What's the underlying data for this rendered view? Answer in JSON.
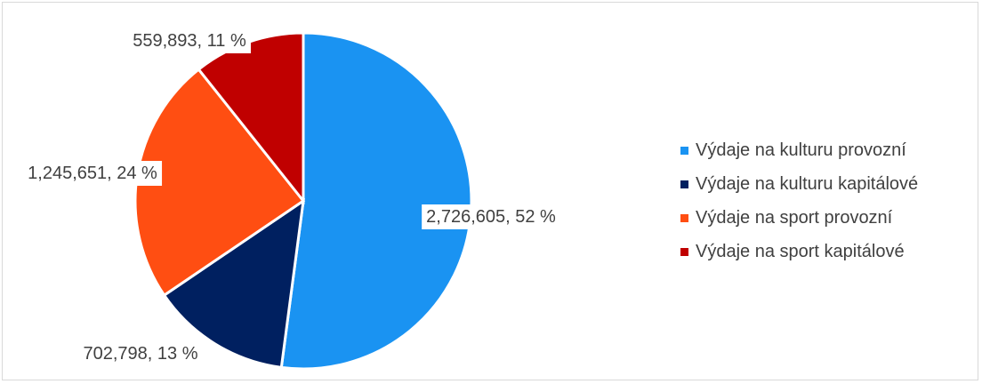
{
  "chart_data": {
    "type": "pie",
    "title": "",
    "series": [
      {
        "name": "Výdaje na kulturu provozní",
        "value": 2726605,
        "percent": 52,
        "color": "#1a93f2",
        "label": "2,726,605, 52 %"
      },
      {
        "name": "Výdaje na kulturu kapitálové",
        "value": 702798,
        "percent": 13,
        "color": "#002060",
        "label": "702,798, 13 %"
      },
      {
        "name": "Výdaje na sport provozní",
        "value": 1245651,
        "percent": 24,
        "color": "#ff4e12",
        "label": "1,245,651, 24 %"
      },
      {
        "name": "Výdaje na sport kapitálové",
        "value": 559893,
        "percent": 11,
        "color": "#c00000",
        "label": "559,893, 11 %"
      }
    ],
    "legend_position": "right"
  }
}
